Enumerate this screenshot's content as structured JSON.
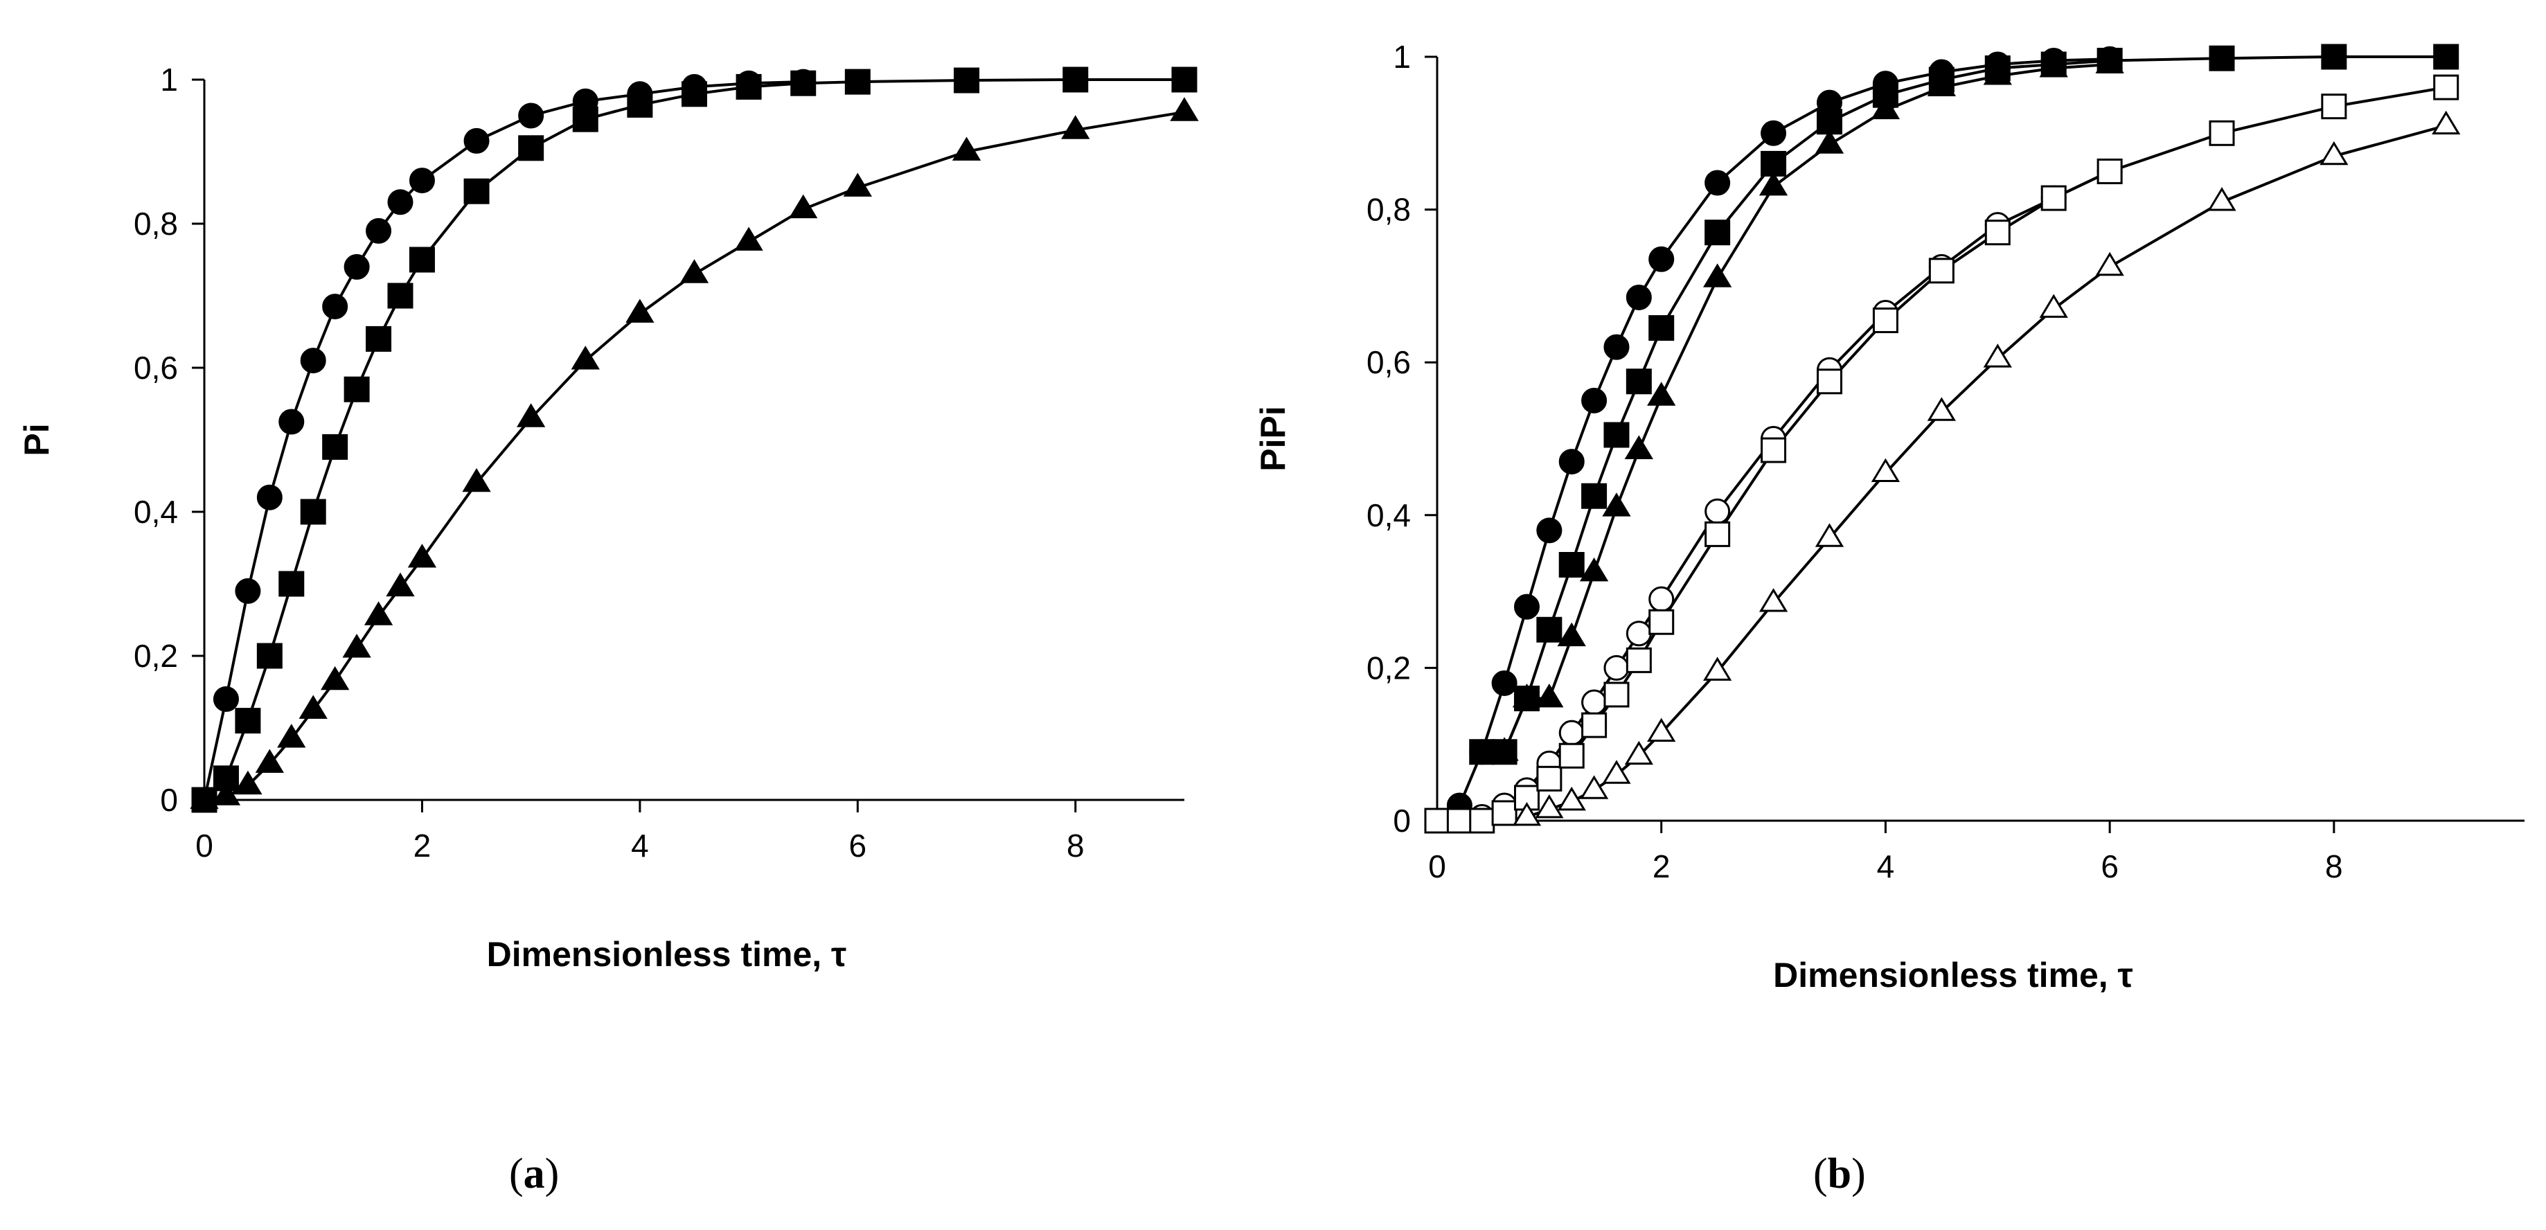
{
  "chart_data": [
    {
      "panel": "a",
      "type": "scatter",
      "panel_label": {
        "open": "(",
        "letter": "a",
        "close": ")"
      },
      "xlabel": "Dimensionless time, τ",
      "ylabel": "Pi",
      "xlim": [
        0,
        9
      ],
      "ylim": [
        0,
        1
      ],
      "xticks": [
        0,
        2,
        4,
        6,
        8
      ],
      "xtick_labels": [
        "0",
        "2",
        "4",
        "6",
        "8"
      ],
      "yticks": [
        0,
        0.2,
        0.4,
        0.6,
        0.8,
        1
      ],
      "ytick_labels": [
        "0",
        "0,2",
        "0,4",
        "0,6",
        "0,8",
        "1"
      ],
      "series": [
        {
          "name": "filled-circles",
          "marker": "circle",
          "filled": true,
          "x": [
            0,
            0.2,
            0.4,
            0.6,
            0.8,
            1.0,
            1.2,
            1.4,
            1.6,
            1.8,
            2.0,
            2.5,
            3.0,
            3.5,
            4.0,
            4.5,
            5.0,
            5.5
          ],
          "y": [
            0,
            0.14,
            0.29,
            0.42,
            0.525,
            0.61,
            0.685,
            0.74,
            0.79,
            0.83,
            0.86,
            0.915,
            0.95,
            0.97,
            0.98,
            0.99,
            0.995,
            0.997
          ]
        },
        {
          "name": "filled-squares",
          "marker": "square",
          "filled": true,
          "x": [
            0,
            0.2,
            0.4,
            0.6,
            0.8,
            1.0,
            1.2,
            1.4,
            1.6,
            1.8,
            2.0,
            2.5,
            3.0,
            3.5,
            4.0,
            4.5,
            5.0,
            5.5,
            6.0,
            7.0,
            8.0,
            9.0
          ],
          "y": [
            0,
            0.03,
            0.11,
            0.2,
            0.3,
            0.4,
            0.49,
            0.57,
            0.64,
            0.7,
            0.75,
            0.845,
            0.905,
            0.945,
            0.965,
            0.98,
            0.99,
            0.995,
            0.997,
            0.999,
            1.0,
            1.0
          ]
        },
        {
          "name": "filled-triangles",
          "marker": "triangle",
          "filled": true,
          "x": [
            0,
            0.2,
            0.4,
            0.6,
            0.8,
            1.0,
            1.2,
            1.4,
            1.6,
            1.8,
            2.0,
            2.5,
            3.0,
            3.5,
            4.0,
            4.5,
            5.0,
            5.5,
            6.0,
            7.0,
            8.0,
            9.0
          ],
          "y": [
            0,
            0.005,
            0.02,
            0.05,
            0.085,
            0.125,
            0.165,
            0.21,
            0.255,
            0.295,
            0.335,
            0.44,
            0.53,
            0.61,
            0.675,
            0.73,
            0.775,
            0.82,
            0.85,
            0.9,
            0.93,
            0.955
          ]
        }
      ]
    },
    {
      "panel": "b",
      "type": "scatter",
      "panel_label": {
        "open": "(",
        "letter": "b",
        "close": ")"
      },
      "xlabel": "Dimensionless time, τ",
      "ylabel": "PiPi",
      "xlim": [
        0,
        9.7
      ],
      "ylim": [
        0,
        1
      ],
      "xticks": [
        0,
        2,
        4,
        6,
        8
      ],
      "xtick_labels": [
        "0",
        "2",
        "4",
        "6",
        "8"
      ],
      "yticks": [
        0,
        0.2,
        0.4,
        0.6,
        0.8,
        1
      ],
      "ytick_labels": [
        "0",
        "0,2",
        "0,4",
        "0,6",
        "0,8",
        "1"
      ],
      "series": [
        {
          "name": "filled-circles",
          "marker": "circle",
          "filled": true,
          "x": [
            0.2,
            0.4,
            0.6,
            0.8,
            1.0,
            1.2,
            1.4,
            1.6,
            1.8,
            2.0,
            2.5,
            3.0,
            3.5,
            4.0,
            4.5,
            5.0,
            5.5,
            6.0
          ],
          "y": [
            0.02,
            0.09,
            0.18,
            0.28,
            0.38,
            0.47,
            0.55,
            0.62,
            0.685,
            0.735,
            0.835,
            0.9,
            0.94,
            0.965,
            0.98,
            0.99,
            0.995,
            0.997
          ]
        },
        {
          "name": "filled-squares",
          "marker": "square",
          "filled": true,
          "x": [
            0.4,
            0.6,
            0.8,
            1.0,
            1.2,
            1.4,
            1.6,
            1.8,
            2.0,
            2.5,
            3.0,
            3.5,
            4.0,
            4.5,
            5.0,
            5.5,
            6.0,
            7.0,
            8.0,
            9.0
          ],
          "y": [
            0.09,
            0.09,
            0.16,
            0.25,
            0.335,
            0.425,
            0.505,
            0.575,
            0.645,
            0.77,
            0.86,
            0.915,
            0.95,
            0.97,
            0.985,
            0.99,
            0.995,
            0.998,
            1.0,
            1.0
          ]
        },
        {
          "name": "filled-triangles",
          "marker": "triangle",
          "filled": true,
          "x": [
            0.6,
            0.8,
            1.0,
            1.2,
            1.4,
            1.6,
            1.8,
            2.0,
            2.5,
            3.0,
            3.5,
            4.0,
            4.5,
            5.0,
            5.5,
            6.0
          ],
          "y": [
            0.09,
            0.16,
            0.16,
            0.24,
            0.325,
            0.41,
            0.485,
            0.555,
            0.71,
            0.83,
            0.885,
            0.93,
            0.96,
            0.975,
            0.985,
            0.99
          ]
        },
        {
          "name": "open-circles",
          "marker": "circle",
          "filled": false,
          "x": [
            0.4,
            0.6,
            0.8,
            1.0,
            1.2,
            1.4,
            1.6,
            1.8,
            2.0,
            2.5,
            3.0,
            3.5,
            4.0,
            4.5,
            5.0,
            5.5,
            6.0
          ],
          "y": [
            0.005,
            0.02,
            0.04,
            0.075,
            0.115,
            0.155,
            0.2,
            0.245,
            0.29,
            0.405,
            0.5,
            0.59,
            0.665,
            0.725,
            0.78,
            0.815,
            0.85
          ]
        },
        {
          "name": "open-squares",
          "marker": "square",
          "filled": false,
          "x": [
            0,
            0.2,
            0.4,
            0.6,
            0.8,
            1.0,
            1.2,
            1.4,
            1.6,
            1.8,
            2.0,
            2.5,
            3.0,
            3.5,
            4.0,
            4.5,
            5.0,
            5.5,
            6.0,
            7.0,
            8.0,
            9.0
          ],
          "y": [
            0,
            0,
            0,
            0.01,
            0.03,
            0.055,
            0.085,
            0.125,
            0.165,
            0.21,
            0.26,
            0.375,
            0.485,
            0.575,
            0.655,
            0.72,
            0.77,
            0.815,
            0.85,
            0.9,
            0.935,
            0.96
          ]
        },
        {
          "name": "open-triangles",
          "marker": "triangle",
          "filled": false,
          "x": [
            0.8,
            1.0,
            1.2,
            1.4,
            1.6,
            1.8,
            2.0,
            2.5,
            3.0,
            3.5,
            4.0,
            4.5,
            5.0,
            5.5,
            6.0,
            7.0,
            8.0,
            9.0
          ],
          "y": [
            0.005,
            0.015,
            0.025,
            0.04,
            0.06,
            0.085,
            0.115,
            0.195,
            0.285,
            0.37,
            0.455,
            0.535,
            0.605,
            0.67,
            0.725,
            0.81,
            0.87,
            0.91
          ]
        }
      ]
    }
  ]
}
